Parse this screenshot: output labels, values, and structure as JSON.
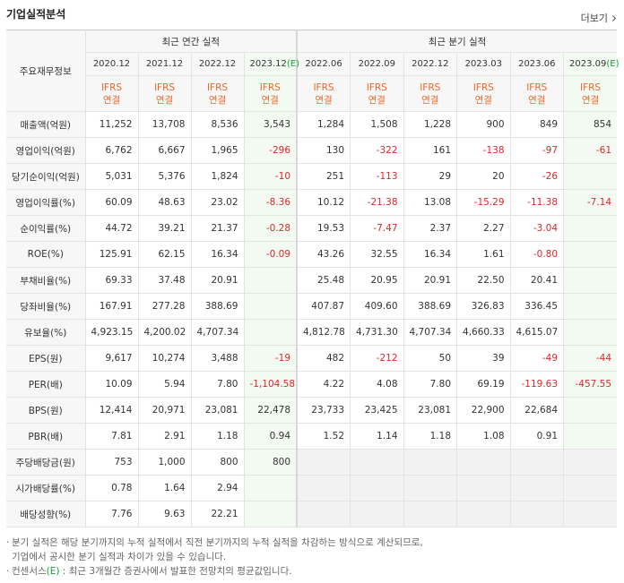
{
  "header": {
    "title": "기업실적분석",
    "more": "더보기"
  },
  "table": {
    "header_label": "주요재무정보",
    "groups": [
      "최근 연간 실적",
      "최근 분기 실적"
    ],
    "periods": [
      "2020.12",
      "2021.12",
      "2022.12",
      "2023.12(E)",
      "2022.06",
      "2022.09",
      "2022.12",
      "2023.03",
      "2023.06",
      "2023.09(E)"
    ],
    "basis": {
      "standard": "IFRS",
      "scope": "연결"
    },
    "rows": [
      {
        "label": "매출액(억원)",
        "values": [
          "11,252",
          "13,708",
          "8,536",
          "3,543",
          "1,284",
          "1,508",
          "1,228",
          "900",
          "849",
          "854"
        ]
      },
      {
        "label": "영업이익(억원)",
        "values": [
          "6,762",
          "6,667",
          "1,965",
          "-296",
          "130",
          "-322",
          "161",
          "-138",
          "-97",
          "-61"
        ]
      },
      {
        "label": "당기순이익(억원)",
        "values": [
          "5,031",
          "5,376",
          "1,824",
          "-10",
          "251",
          "-113",
          "29",
          "20",
          "-26",
          null
        ]
      },
      {
        "label": "영업이익률(%)",
        "values": [
          "60.09",
          "48.63",
          "23.02",
          "-8.36",
          "10.12",
          "-21.38",
          "13.08",
          "-15.29",
          "-11.38",
          "-7.14"
        ]
      },
      {
        "label": "순이익률(%)",
        "values": [
          "44.72",
          "39.21",
          "21.37",
          "-0.28",
          "19.53",
          "-7.47",
          "2.37",
          "2.27",
          "-3.04",
          null
        ]
      },
      {
        "label": "ROE(%)",
        "values": [
          "125.91",
          "62.15",
          "16.34",
          "-0.09",
          "43.26",
          "32.55",
          "16.34",
          "1.61",
          "-0.80",
          null
        ]
      },
      {
        "label": "부채비율(%)",
        "values": [
          "69.33",
          "37.48",
          "20.91",
          null,
          "25.48",
          "20.95",
          "20.91",
          "22.50",
          "20.41",
          null
        ]
      },
      {
        "label": "당좌비율(%)",
        "values": [
          "167.91",
          "277.28",
          "388.69",
          null,
          "407.87",
          "409.60",
          "388.69",
          "326.83",
          "336.45",
          null
        ]
      },
      {
        "label": "유보율(%)",
        "values": [
          "4,923.15",
          "4,200.02",
          "4,707.34",
          null,
          "4,812.78",
          "4,731.30",
          "4,707.34",
          "4,660.33",
          "4,615.07",
          null
        ]
      },
      {
        "label": "EPS(원)",
        "values": [
          "9,617",
          "10,274",
          "3,488",
          "-19",
          "482",
          "-212",
          "50",
          "39",
          "-49",
          "-44"
        ]
      },
      {
        "label": "PER(배)",
        "values": [
          "10.09",
          "5.94",
          "7.80",
          "-1,104.58",
          "4.22",
          "4.08",
          "7.80",
          "69.19",
          "-119.63",
          "-457.55"
        ]
      },
      {
        "label": "BPS(원)",
        "values": [
          "12,414",
          "20,971",
          "23,081",
          "22,478",
          "23,733",
          "23,425",
          "23,081",
          "22,900",
          "22,684",
          null
        ]
      },
      {
        "label": "PBR(배)",
        "values": [
          "7.81",
          "2.91",
          "1.18",
          "0.94",
          "1.52",
          "1.14",
          "1.18",
          "1.08",
          "0.91",
          null
        ]
      },
      {
        "label": "주당배당금(원)",
        "values": [
          "753",
          "1,000",
          "800",
          "800"
        ]
      },
      {
        "label": "시가배당률(%)",
        "values": [
          "0.78",
          "1.64",
          "2.94",
          null
        ]
      },
      {
        "label": "배당성향(%)",
        "values": [
          "7.76",
          "9.63",
          "22.21",
          null
        ]
      }
    ]
  },
  "notes": [
    [
      "분기 실적은 해당 분기까지의 누적 실적에서 직전 분기까지의 누적 실적을 차감하는 방식으로 계산되므로,",
      "기업에서 공시한 분기 실적과 차이가 있을 수 있습니다."
    ],
    [
      "컨센서스(E) : 최근 3개월간 증권사에서 발표한 전망치의 평균값입니다."
    ]
  ]
}
